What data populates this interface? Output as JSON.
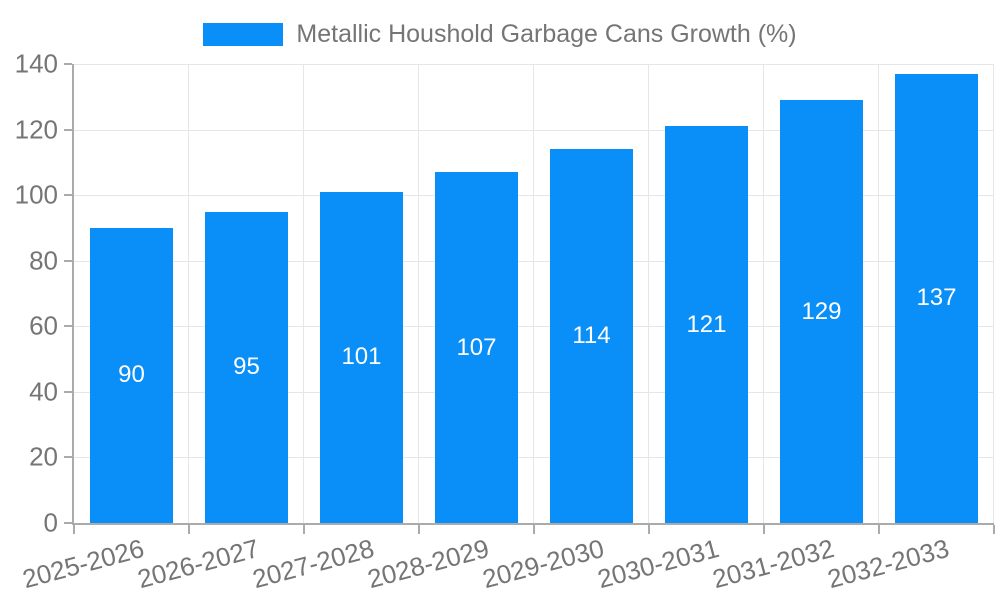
{
  "chart_data": {
    "type": "bar",
    "legend": "Metallic Houshold Garbage Cans Growth (%)",
    "legend_position": "top-center",
    "categories": [
      "2025-2026",
      "2026-2027",
      "2027-2028",
      "2028-2029",
      "2029-2030",
      "2030-2031",
      "2031-2032",
      "2032-2033"
    ],
    "values": [
      90,
      95,
      101,
      107,
      114,
      121,
      129,
      137
    ],
    "xlabel": "",
    "ylabel": "",
    "ylim": [
      0,
      140
    ],
    "yticks": [
      0,
      20,
      40,
      60,
      80,
      100,
      120,
      140
    ],
    "grid": true,
    "x_label_rotation_deg": -15,
    "colors": {
      "bar": "#0a8ef8",
      "axis_line": "#ababab",
      "gridline": "#e6e6e6",
      "tick_label": "#757575",
      "value_label": "#ffffff",
      "background": "#ffffff"
    }
  }
}
